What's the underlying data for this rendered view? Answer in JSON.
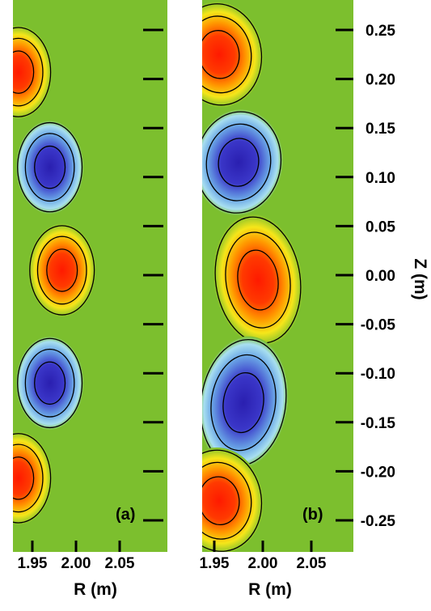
{
  "chart_data": [
    {
      "type": "heatmap",
      "panel_label": "(a)",
      "xlabel": "R (m)",
      "x_ticks": [
        "1.95",
        "2.00",
        "2.05"
      ],
      "z_ticks": [
        "0.25",
        "0.20",
        "0.15",
        "0.10",
        "0.05",
        "0.00",
        "-0.05",
        "-0.10",
        "-0.15",
        "-0.20",
        "-0.25"
      ],
      "extrema": [
        {
          "r": 1.934,
          "z": 0.207,
          "sign": 1
        },
        {
          "r": 1.97,
          "z": 0.11,
          "sign": -1
        },
        {
          "r": 1.984,
          "z": 0.005,
          "sign": 1
        },
        {
          "r": 1.97,
          "z": -0.11,
          "sign": -1
        },
        {
          "r": 1.934,
          "z": -0.207,
          "sign": 1
        }
      ]
    },
    {
      "type": "heatmap",
      "panel_label": "(b)",
      "xlabel": "R (m)",
      "ylabel": "Z (m)",
      "x_ticks": [
        "1.95",
        "2.00",
        "2.05"
      ],
      "z_ticks": [
        "0.25",
        "0.20",
        "0.15",
        "0.10",
        "0.05",
        "0.00",
        "-0.05",
        "-0.10",
        "-0.15",
        "-0.20",
        "-0.25"
      ],
      "extrema": [
        {
          "r": 1.955,
          "z": 0.225,
          "sign": 1
        },
        {
          "r": 1.975,
          "z": 0.115,
          "sign": -1
        },
        {
          "r": 1.995,
          "z": -0.005,
          "sign": 1
        },
        {
          "r": 1.98,
          "z": -0.13,
          "sign": -1
        },
        {
          "r": 1.955,
          "z": -0.23,
          "sign": 1
        }
      ]
    }
  ],
  "colors": {
    "background": "#7cbf2e",
    "positive_peak": "#ff1a00",
    "negative_peak": "#2a1fb0",
    "contour": "#000000"
  }
}
